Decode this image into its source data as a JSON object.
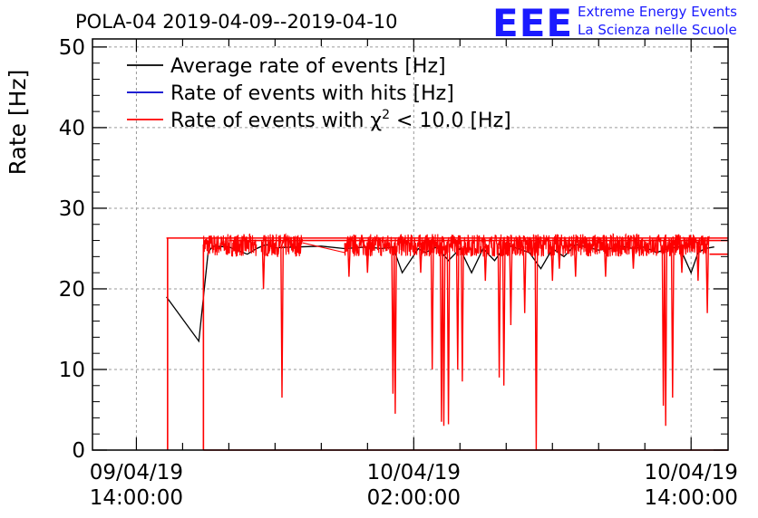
{
  "header": {
    "title": "POLA-04 2019-04-09--2019-04-10",
    "logo_text": "EEE",
    "org_line1": "Extreme Energy Events",
    "org_line2": "La Scienza nelle Scuole"
  },
  "chart_data": {
    "type": "line",
    "title": "POLA-04 2019-04-09--2019-04-10",
    "ylabel": "Rate [Hz]",
    "xlabel": "",
    "ylim": [
      0,
      51
    ],
    "xlim_hours": [
      12.1,
      39.6
    ],
    "yticks": [
      0,
      10,
      20,
      30,
      40,
      50
    ],
    "xticks": [
      {
        "t": 14,
        "line1": "09/04/19",
        "line2": "14:00:00"
      },
      {
        "t": 26,
        "line1": "10/04/19",
        "line2": "02:00:00"
      },
      {
        "t": 38,
        "line1": "10/04/19",
        "line2": "14:00:00"
      }
    ],
    "grid": true,
    "legend_position": "top-left",
    "legend": [
      {
        "name": "Average rate of events [Hz]",
        "color": "#000000"
      },
      {
        "name": "Rate of events with hits [Hz]",
        "color": "#0000cc"
      },
      {
        "name_prefix": "Rate of events with ",
        "name_chi": "χ",
        "name_sup": "2",
        "name_suffix": " < 10.0 [Hz]",
        "color": "#ff0000"
      }
    ],
    "series": [
      {
        "name": "Average rate of events [Hz]",
        "color": "#000000",
        "x": [
          15.3,
          16.7,
          17.1,
          17.3,
          18.0,
          18.8,
          19.2,
          19.6,
          20.0,
          21.0,
          22.0,
          23.0,
          24.0,
          24.6,
          25.1,
          25.5,
          26.2,
          26.5,
          27.0,
          27.5,
          28.0,
          28.5,
          29.0,
          29.5,
          30.0,
          30.5,
          31.0,
          31.5,
          32.0,
          32.5,
          33.0,
          33.5,
          34.0,
          34.5,
          35.0,
          35.5,
          36.0,
          36.5,
          37.0,
          37.5,
          38.0,
          38.3,
          38.6,
          39.0
        ],
        "y": [
          19.0,
          13.5,
          24.5,
          25.3,
          25.2,
          24.3,
          25.0,
          25.5,
          25.1,
          25.2,
          25.3,
          25.0,
          25.2,
          25.0,
          25.2,
          22.0,
          25.0,
          24.5,
          25.2,
          23.5,
          25.0,
          22.0,
          25.0,
          23.5,
          25.5,
          25.0,
          24.5,
          22.5,
          25.0,
          24.0,
          25.5,
          25.2,
          24.8,
          25.0,
          25.3,
          25.0,
          25.2,
          24.5,
          25.0,
          25.2,
          22.0,
          24.5,
          25.0,
          25.2
        ]
      },
      {
        "name": "Rate of events with hits [Hz]",
        "color": "#0000cc",
        "x": [],
        "y": []
      },
      {
        "name": "Rate of events with χ2 < 10.0 [Hz]",
        "color": "#ff0000",
        "x": [
          15.3,
          15.3,
          15.4,
          39.6
        ],
        "y": [
          0,
          19.0,
          26.3,
          26.3
        ],
        "noise_band": {
          "x_start": 16.9,
          "x_end": 38.8,
          "mean": 25.4,
          "amplitude": 1.4
        },
        "gaps": [
          [
            19.2,
            19.4
          ],
          [
            21.2,
            23.0
          ]
        ],
        "dips": [
          {
            "x": 19.5,
            "y": 20.0
          },
          {
            "x": 20.3,
            "y": 6.5
          },
          {
            "x": 23.2,
            "y": 21.5
          },
          {
            "x": 24.0,
            "y": 22.0
          },
          {
            "x": 25.1,
            "y": 7.0
          },
          {
            "x": 25.2,
            "y": 4.5
          },
          {
            "x": 26.3,
            "y": 22.0
          },
          {
            "x": 26.8,
            "y": 10.0
          },
          {
            "x": 27.2,
            "y": 3.5
          },
          {
            "x": 27.3,
            "y": 3.0
          },
          {
            "x": 27.5,
            "y": 3.2
          },
          {
            "x": 27.9,
            "y": 10.0
          },
          {
            "x": 28.1,
            "y": 8.5
          },
          {
            "x": 29.1,
            "y": 21.0
          },
          {
            "x": 29.7,
            "y": 9.0
          },
          {
            "x": 29.9,
            "y": 8.0
          },
          {
            "x": 30.2,
            "y": 15.5
          },
          {
            "x": 30.8,
            "y": 17.0
          },
          {
            "x": 31.3,
            "y": 0.0
          },
          {
            "x": 32.0,
            "y": 21.0
          },
          {
            "x": 32.3,
            "y": 22.5
          },
          {
            "x": 33.0,
            "y": 21.5
          },
          {
            "x": 34.3,
            "y": 21.5
          },
          {
            "x": 35.5,
            "y": 22.5
          },
          {
            "x": 36.8,
            "y": 5.5
          },
          {
            "x": 36.9,
            "y": 3.0
          },
          {
            "x": 37.2,
            "y": 6.5
          },
          {
            "x": 37.6,
            "y": 22.0
          },
          {
            "x": 38.3,
            "y": 21.0
          },
          {
            "x": 38.7,
            "y": 17.0
          }
        ],
        "envelope": [
          {
            "x": [
              15.3,
              39.6
            ],
            "y": [
              26.3,
              26.3
            ]
          },
          {
            "x": [
              18.0,
              39.6
            ],
            "y": [
              26.0,
              26.0
            ]
          },
          {
            "x": [
              16.9,
              39.6
            ],
            "y": [
              0,
              0
            ]
          },
          {
            "x": [
              38.8,
              39.6
            ],
            "y": [
              24.3,
              24.3
            ]
          }
        ]
      }
    ]
  }
}
